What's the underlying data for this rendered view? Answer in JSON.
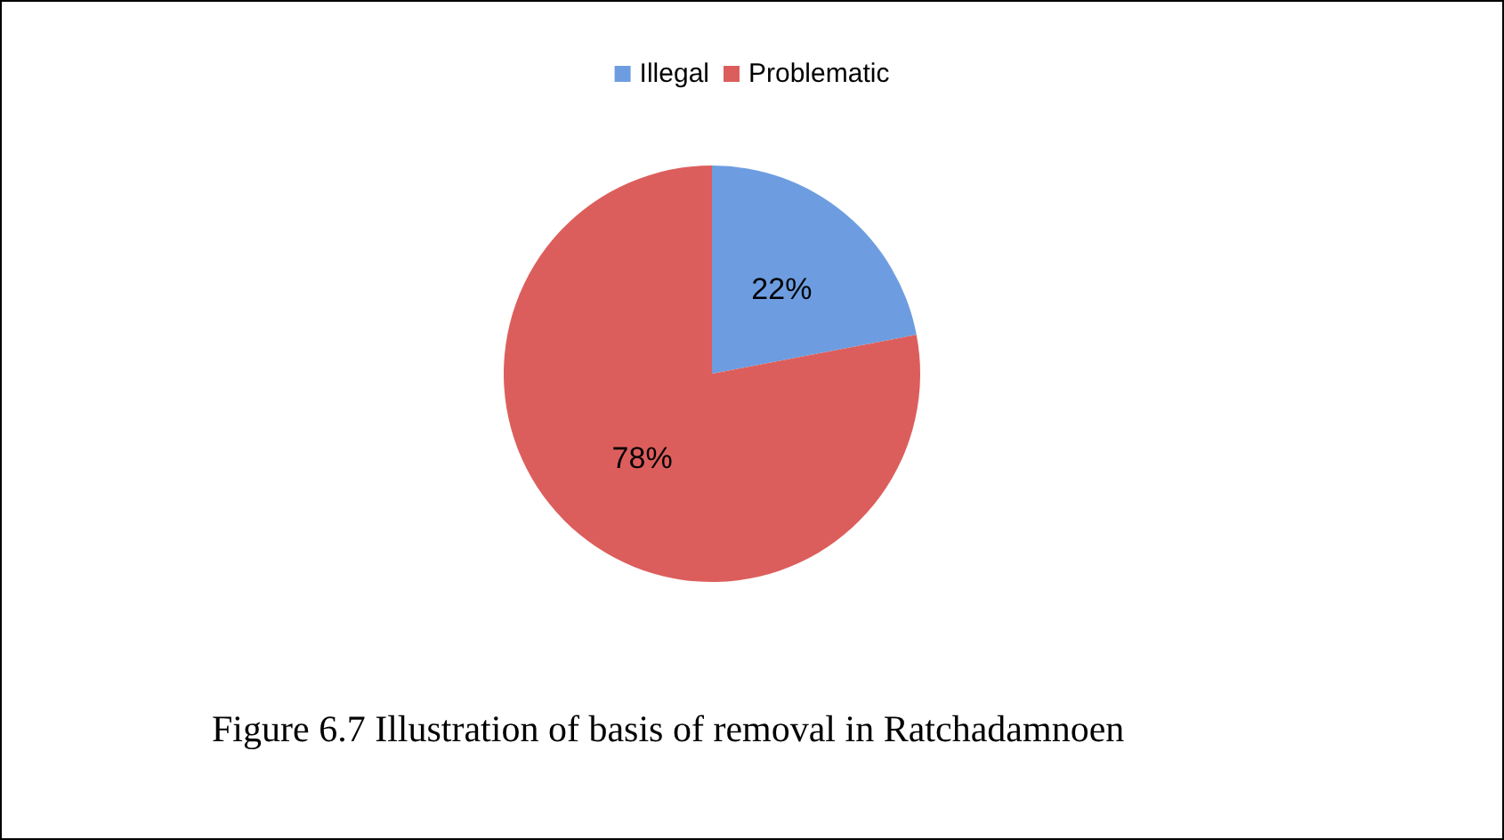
{
  "chart_data": {
    "type": "pie",
    "categories": [
      "Illegal",
      "Problematic"
    ],
    "values": [
      22,
      78
    ],
    "colors": [
      "#6d9de0",
      "#dc5e5c"
    ],
    "value_labels": [
      "22%",
      "78%"
    ],
    "legend": "top",
    "annotations": [
      "Figure 6.7 Illustration of basis of removal in Ratchadamnoen"
    ]
  }
}
